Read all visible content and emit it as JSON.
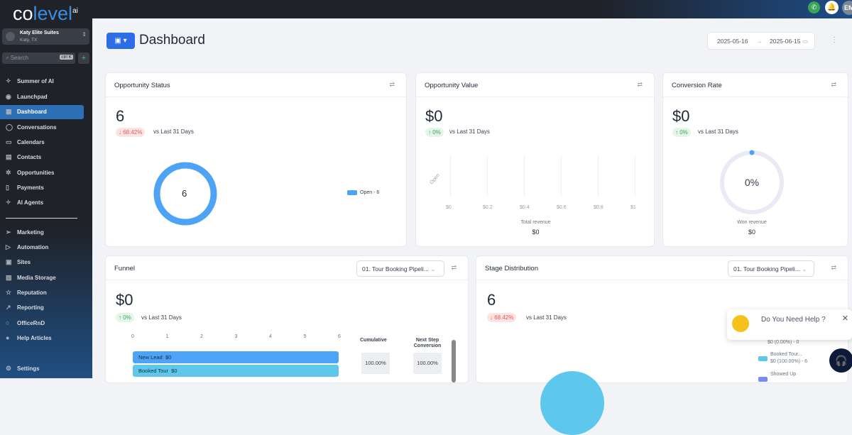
{
  "brand": {
    "logo_pre": "co",
    "logo_main": "level",
    "logo_sup": "ai"
  },
  "location": {
    "name": "Katy Elite Suites",
    "city": "Katy, TX"
  },
  "search": {
    "placeholder": "Search",
    "shortcut": "ctrl K"
  },
  "sidebar": {
    "items": [
      {
        "label": "Summer of AI",
        "icon": "sparkle-icon"
      },
      {
        "label": "Launchpad",
        "icon": "rocket-icon"
      },
      {
        "label": "Dashboard",
        "icon": "grid-icon",
        "active": true
      },
      {
        "label": "Conversations",
        "icon": "chat-icon"
      },
      {
        "label": "Calendars",
        "icon": "calendar-icon"
      },
      {
        "label": "Contacts",
        "icon": "contact-icon"
      },
      {
        "label": "Opportunities",
        "icon": "opportunities-icon"
      },
      {
        "label": "Payments",
        "icon": "payments-icon"
      },
      {
        "label": "AI Agents",
        "icon": "sparkle-icon"
      },
      {
        "label": "Marketing",
        "icon": "send-icon"
      },
      {
        "label": "Automation",
        "icon": "automation-icon"
      },
      {
        "label": "Sites",
        "icon": "sites-icon"
      },
      {
        "label": "Media Storage",
        "icon": "image-icon"
      },
      {
        "label": "Reputation",
        "icon": "star-icon"
      },
      {
        "label": "Reporting",
        "icon": "trend-icon"
      },
      {
        "label": "OfficeRnD",
        "icon": "circle-icon"
      },
      {
        "label": "Help Articles",
        "icon": "help-icon"
      }
    ],
    "settings": "Settings"
  },
  "topbar": {
    "avatar": "EM"
  },
  "header": {
    "title": "Dashboard",
    "date_from": "2025-05-16",
    "date_to": "2025-06-15"
  },
  "cards": {
    "status": {
      "title": "Opportunity Status",
      "value": "6",
      "change": "↓ 68.42%",
      "vs": "vs Last 31 Days",
      "donut_center": "6",
      "legend": "Open - 6"
    },
    "value": {
      "title": "Opportunity Value",
      "value": "$0",
      "change": "↑ 0%",
      "vs": "vs Last 31 Days",
      "y_label": "Open",
      "x_ticks": [
        "$0",
        "$0.2",
        "$0.4",
        "$0.6",
        "$0.8",
        "$1"
      ],
      "footer_label": "Total revenue",
      "footer_value": "$0"
    },
    "conversion": {
      "title": "Conversion Rate",
      "value": "$0",
      "change": "↑ 0%",
      "vs": "vs Last 31 Days",
      "gauge": "0%",
      "footer_label": "Won revenue",
      "footer_value": "$0"
    },
    "funnel": {
      "title": "Funnel",
      "pipeline": "01. Tour Booking Pipeli...",
      "value": "$0",
      "change": "↑ 0%",
      "vs": "vs Last 31 Days",
      "x_ticks": [
        "0",
        "1",
        "2",
        "3",
        "4",
        "5",
        "6"
      ],
      "bars": [
        {
          "label": "New Lead",
          "value": "$0"
        },
        {
          "label": "Booked Tour",
          "value": "$0"
        }
      ],
      "col1": "Cumulative",
      "col2": "Next Step Conversion",
      "cum": [
        "100.00%"
      ],
      "next": [
        "100.00%"
      ]
    },
    "stage": {
      "title": "Stage Distribution",
      "pipeline": "01. Tour Booking Pipeli...",
      "value": "6",
      "change": "↓ 68.42%",
      "vs": "vs Last 31 Days",
      "legend": [
        {
          "label": "$0 (0.00%) - 0"
        },
        {
          "name": "Booked Tour...",
          "label": "$0 (100.00%) - 6"
        },
        {
          "name": "Showed Up"
        }
      ]
    }
  },
  "help": {
    "text": "Do You Need Help ?"
  },
  "colors": {
    "accent": "#2d6ee6",
    "open": "#4da3f5",
    "booked": "#5ec8ec",
    "down": "#e05a5a",
    "up": "#3fa460"
  }
}
